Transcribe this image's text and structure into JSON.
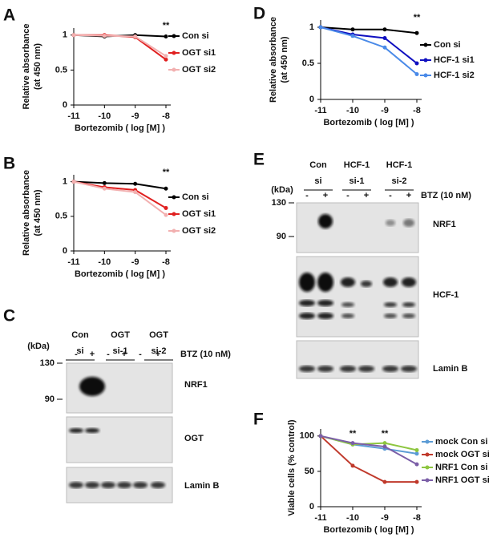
{
  "panel_labels": [
    "A",
    "B",
    "C",
    "D",
    "E",
    "F"
  ],
  "chart_data": [
    {
      "type": "line",
      "x": [
        -11,
        -10,
        -9,
        -8
      ],
      "xlim": [
        -11,
        -8
      ],
      "xticks": [
        -11,
        -10,
        -9,
        -8
      ],
      "ylim": [
        0,
        1.1
      ],
      "yticks": [
        0,
        0.5,
        1
      ],
      "xlabel": "Bortezomib ( log [M] )",
      "ylabel": [
        "Relative absorbance",
        "(at 450 nm)"
      ],
      "series": [
        {
          "name": "Con si",
          "color": "#000000",
          "values": [
            1,
            0.98,
            1,
            0.98
          ]
        },
        {
          "name": "OGT si1",
          "color": "#e02020",
          "values": [
            1,
            1,
            0.97,
            0.65
          ]
        },
        {
          "name": "OGT si2",
          "color": "#f2b0b0",
          "values": [
            1,
            0.99,
            0.98,
            0.7
          ]
        }
      ],
      "annotations": [
        {
          "text": "**",
          "x": -8
        }
      ]
    },
    {
      "type": "line",
      "x": [
        -11,
        -10,
        -9,
        -8
      ],
      "xlim": [
        -11,
        -8
      ],
      "xticks": [
        -11,
        -10,
        -9,
        -8
      ],
      "ylim": [
        0,
        1.1
      ],
      "yticks": [
        0,
        0.5,
        1
      ],
      "xlabel": "Bortezomib ( log [M] )",
      "ylabel": [
        "Relative absorbance",
        "(at 450 nm)"
      ],
      "series": [
        {
          "name": "Con si",
          "color": "#000000",
          "values": [
            1,
            0.98,
            0.97,
            0.9
          ]
        },
        {
          "name": "OGT si1",
          "color": "#e02020",
          "values": [
            1,
            0.92,
            0.88,
            0.62
          ]
        },
        {
          "name": "OGT si2",
          "color": "#f2b0b0",
          "values": [
            1,
            0.9,
            0.85,
            0.52
          ]
        }
      ],
      "annotations": [
        {
          "text": "**",
          "x": -8
        }
      ]
    },
    {
      "type": "line",
      "x": [
        -11,
        -10,
        -9,
        -8
      ],
      "xlim": [
        -11,
        -8
      ],
      "xticks": [
        -11,
        -10,
        -9,
        -8
      ],
      "ylim": [
        0,
        1.1
      ],
      "yticks": [
        0,
        0.5,
        1
      ],
      "xlabel": "Bortezomib ( log [M] )",
      "ylabel": [
        "Relative absorbance",
        "(at 450 nm)"
      ],
      "series": [
        {
          "name": "Con si",
          "color": "#000000",
          "values": [
            1,
            0.97,
            0.97,
            0.92
          ]
        },
        {
          "name": "HCF-1 si1",
          "color": "#1010c0",
          "values": [
            1,
            0.9,
            0.85,
            0.5
          ]
        },
        {
          "name": "HCF-1 si2",
          "color": "#4a8ae8",
          "values": [
            1,
            0.88,
            0.72,
            0.35
          ]
        }
      ],
      "annotations": [
        {
          "text": "**",
          "x": -8
        }
      ]
    },
    {
      "type": "line",
      "x": [
        -11,
        -10,
        -9,
        -8
      ],
      "xlim": [
        -11,
        -8
      ],
      "xticks": [
        -11,
        -10,
        -9,
        -8
      ],
      "ylim": [
        0,
        110
      ],
      "yticks": [
        0,
        50,
        100
      ],
      "xlabel": "Bortezomib ( log [M] )",
      "ylabel": [
        "Viable cells (% control)"
      ],
      "series": [
        {
          "name": "mock Con si",
          "color": "#5b9bd5",
          "values": [
            100,
            88,
            82,
            75
          ]
        },
        {
          "name": "mock OGT si",
          "color": "#c0392b",
          "values": [
            100,
            58,
            35,
            35
          ]
        },
        {
          "name": "NRF1 Con si",
          "color": "#8dc63f",
          "values": [
            100,
            88,
            90,
            80
          ]
        },
        {
          "name": "NRF1 OGT si",
          "color": "#7b5ea7",
          "values": [
            100,
            90,
            85,
            60
          ]
        }
      ],
      "annotations": [
        {
          "text": "**",
          "x": -10
        },
        {
          "text": "**",
          "x": -9
        }
      ]
    }
  ],
  "blots": [
    {
      "groups": [
        [
          "Con",
          "si"
        ],
        [
          "OGT",
          "si-1"
        ],
        [
          "OGT",
          "si-2"
        ]
      ],
      "kda": "(kDa)",
      "treatment": [
        "-",
        "+",
        "-",
        "+",
        "-",
        "+"
      ],
      "treatment_label": "BTZ (10 nM)",
      "markers": [
        130,
        90
      ],
      "bands": [
        "NRF1",
        "OGT",
        "Lamin B"
      ]
    },
    {
      "groups": [
        [
          "Con",
          "si"
        ],
        [
          "HCF-1",
          "si-1"
        ],
        [
          "HCF-1",
          "si-2"
        ]
      ],
      "kda": "(kDa)",
      "treatment": [
        "-",
        "+",
        "-",
        "+",
        "-",
        "+"
      ],
      "treatment_label": "BTZ (10 nM)",
      "markers": [
        130,
        90
      ],
      "bands": [
        "NRF1",
        "HCF-1",
        "Lamin B"
      ]
    }
  ]
}
